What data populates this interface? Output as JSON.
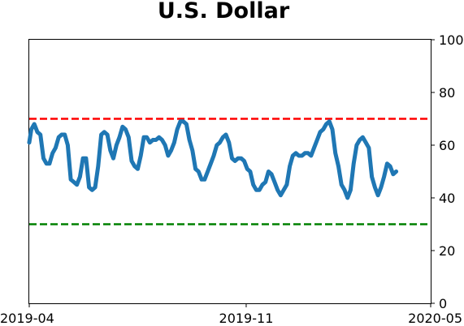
{
  "chart_data": {
    "type": "line",
    "title": "U.S. Dollar",
    "xlabel": "",
    "ylabel": "",
    "x_ticks": [
      "2019-04",
      "2019-11",
      "2020-05"
    ],
    "x_range": [
      "2019-04-01",
      "2020-05-01"
    ],
    "ylim": [
      0,
      100
    ],
    "y_ticks": [
      "0",
      "20",
      "40",
      "60",
      "80",
      "100"
    ],
    "y_axis_side": "right",
    "grid": false,
    "legend": "none",
    "reference_lines": [
      {
        "value": 70,
        "color": "#ff0000",
        "style": "dashed"
      },
      {
        "value": 30,
        "color": "#008000",
        "style": "dashed"
      }
    ],
    "series": [
      {
        "color": "#1f77b4",
        "points": [
          [
            "2019-04-01",
            61
          ],
          [
            "2019-04-03",
            66
          ],
          [
            "2019-04-06",
            68
          ],
          [
            "2019-04-09",
            65
          ],
          [
            "2019-04-12",
            64
          ],
          [
            "2019-04-15",
            55
          ],
          [
            "2019-04-18",
            53
          ],
          [
            "2019-04-21",
            53
          ],
          [
            "2019-04-24",
            57
          ],
          [
            "2019-04-27",
            59
          ],
          [
            "2019-04-30",
            63
          ],
          [
            "2019-05-03",
            64
          ],
          [
            "2019-05-06",
            64
          ],
          [
            "2019-05-09",
            60
          ],
          [
            "2019-05-12",
            47
          ],
          [
            "2019-05-15",
            46
          ],
          [
            "2019-05-18",
            45
          ],
          [
            "2019-05-21",
            48
          ],
          [
            "2019-05-24",
            55
          ],
          [
            "2019-05-27",
            55
          ],
          [
            "2019-05-30",
            44
          ],
          [
            "2019-06-02",
            43
          ],
          [
            "2019-06-05",
            44
          ],
          [
            "2019-06-08",
            52
          ],
          [
            "2019-06-11",
            64
          ],
          [
            "2019-06-14",
            65
          ],
          [
            "2019-06-17",
            64
          ],
          [
            "2019-06-20",
            58
          ],
          [
            "2019-06-23",
            55
          ],
          [
            "2019-06-26",
            60
          ],
          [
            "2019-06-29",
            63
          ],
          [
            "2019-07-02",
            67
          ],
          [
            "2019-07-05",
            66
          ],
          [
            "2019-07-08",
            63
          ],
          [
            "2019-07-11",
            54
          ],
          [
            "2019-07-14",
            52
          ],
          [
            "2019-07-17",
            51
          ],
          [
            "2019-07-20",
            56
          ],
          [
            "2019-07-23",
            63
          ],
          [
            "2019-07-26",
            63
          ],
          [
            "2019-07-29",
            61
          ],
          [
            "2019-08-01",
            62
          ],
          [
            "2019-08-04",
            62
          ],
          [
            "2019-08-07",
            63
          ],
          [
            "2019-08-10",
            62
          ],
          [
            "2019-08-13",
            60
          ],
          [
            "2019-08-16",
            56
          ],
          [
            "2019-08-19",
            58
          ],
          [
            "2019-08-22",
            61
          ],
          [
            "2019-08-25",
            66
          ],
          [
            "2019-08-28",
            69
          ],
          [
            "2019-08-31",
            69
          ],
          [
            "2019-09-03",
            68
          ],
          [
            "2019-09-06",
            62
          ],
          [
            "2019-09-09",
            58
          ],
          [
            "2019-09-12",
            51
          ],
          [
            "2019-09-15",
            50
          ],
          [
            "2019-09-18",
            47
          ],
          [
            "2019-09-21",
            47
          ],
          [
            "2019-09-24",
            50
          ],
          [
            "2019-09-27",
            53
          ],
          [
            "2019-09-30",
            56
          ],
          [
            "2019-10-03",
            60
          ],
          [
            "2019-10-06",
            61
          ],
          [
            "2019-10-09",
            63
          ],
          [
            "2019-10-12",
            64
          ],
          [
            "2019-10-15",
            61
          ],
          [
            "2019-10-18",
            55
          ],
          [
            "2019-10-21",
            54
          ],
          [
            "2019-10-24",
            55
          ],
          [
            "2019-10-27",
            55
          ],
          [
            "2019-10-30",
            54
          ],
          [
            "2019-11-02",
            51
          ],
          [
            "2019-11-05",
            50
          ],
          [
            "2019-11-08",
            45
          ],
          [
            "2019-11-11",
            43
          ],
          [
            "2019-11-14",
            43
          ],
          [
            "2019-11-17",
            45
          ],
          [
            "2019-11-20",
            46
          ],
          [
            "2019-11-23",
            50
          ],
          [
            "2019-11-26",
            49
          ],
          [
            "2019-11-29",
            46
          ],
          [
            "2019-12-02",
            43
          ],
          [
            "2019-12-05",
            41
          ],
          [
            "2019-12-08",
            43
          ],
          [
            "2019-12-11",
            45
          ],
          [
            "2019-12-14",
            52
          ],
          [
            "2019-12-17",
            56
          ],
          [
            "2019-12-20",
            57
          ],
          [
            "2019-12-23",
            56
          ],
          [
            "2019-12-26",
            56
          ],
          [
            "2019-12-29",
            57
          ],
          [
            "2020-01-01",
            57
          ],
          [
            "2020-01-04",
            56
          ],
          [
            "2020-01-07",
            59
          ],
          [
            "2020-01-10",
            62
          ],
          [
            "2020-01-13",
            65
          ],
          [
            "2020-01-16",
            66
          ],
          [
            "2020-01-19",
            68
          ],
          [
            "2020-01-22",
            69
          ],
          [
            "2020-01-25",
            66
          ],
          [
            "2020-01-28",
            57
          ],
          [
            "2020-01-31",
            52
          ],
          [
            "2020-02-03",
            45
          ],
          [
            "2020-02-06",
            43
          ],
          [
            "2020-02-09",
            40
          ],
          [
            "2020-02-12",
            43
          ],
          [
            "2020-02-15",
            53
          ],
          [
            "2020-02-18",
            60
          ],
          [
            "2020-02-21",
            62
          ],
          [
            "2020-02-24",
            63
          ],
          [
            "2020-02-27",
            61
          ],
          [
            "2020-03-01",
            59
          ],
          [
            "2020-03-04",
            48
          ],
          [
            "2020-03-07",
            44
          ],
          [
            "2020-03-10",
            41
          ],
          [
            "2020-03-13",
            44
          ],
          [
            "2020-03-16",
            48
          ],
          [
            "2020-03-19",
            53
          ],
          [
            "2020-03-22",
            52
          ],
          [
            "2020-03-25",
            49
          ],
          [
            "2020-03-28",
            50
          ]
        ]
      }
    ]
  }
}
